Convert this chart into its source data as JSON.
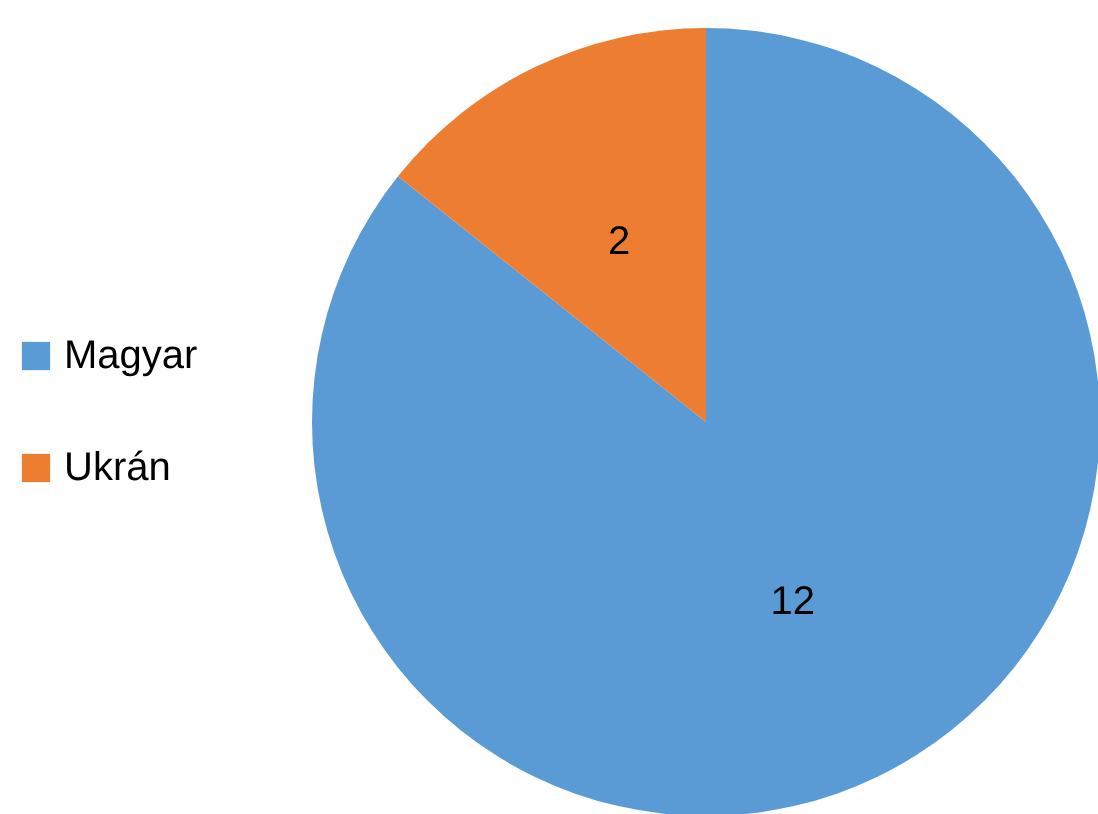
{
  "chart_data": {
    "type": "pie",
    "categories": [
      "Magyar",
      "Ukrán"
    ],
    "values": [
      12,
      2
    ],
    "colors": [
      "#5b9bd5",
      "#ed7d31"
    ],
    "data_labels": true,
    "legend": "left"
  }
}
